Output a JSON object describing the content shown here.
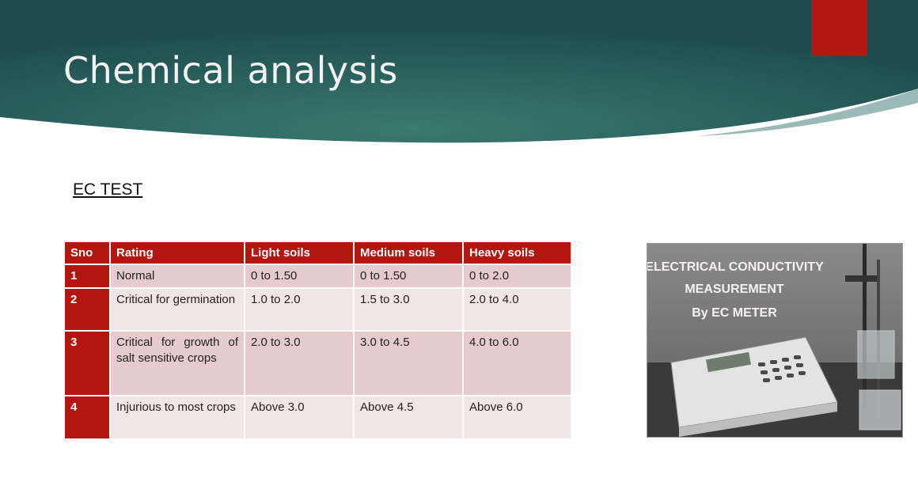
{
  "slide": {
    "title": "Chemical analysis",
    "subtitle": "EC TEST",
    "accent_color": "#b2160f",
    "banner_color": "#2e6a64"
  },
  "table": {
    "headers": [
      "Sno",
      "Rating",
      "Light soils",
      "Medium soils",
      "Heavy soils"
    ],
    "rows": [
      [
        "1",
        "Normal",
        "0 to 1.50",
        "0 to 1.50",
        "0 to 2.0"
      ],
      [
        "2",
        "Critical for germination",
        "1.0 to 2.0",
        "1.5 to 3.0",
        "2.0 to 4.0"
      ],
      [
        "3",
        "Critical for growth of salt sensitive crops",
        "2.0 to 3.0",
        "3.0 to 4.5",
        "4.0 to 6.0"
      ],
      [
        "4",
        "Injurious to most crops",
        "Above 3.0",
        "Above 4.5",
        "Above 6.0"
      ]
    ]
  },
  "photo": {
    "caption_lines": [
      "ELECTRICAL CONDUCTIVITY",
      "MEASUREMENT",
      "By EC METER"
    ]
  }
}
